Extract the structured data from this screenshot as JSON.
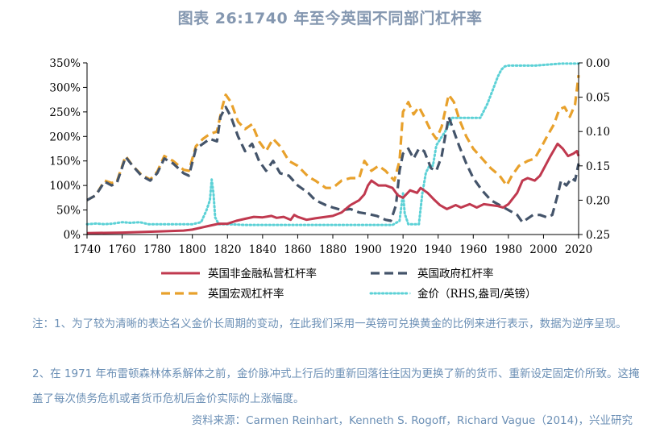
{
  "title": "图表 26:1740 年至今英国不同部门杠杆率",
  "notes": {
    "note1": "注：1、为了较为清晰的表达名义金价长周期的变动，在此我们采用一英镑可兑换黄金的比例来进行表示，数据为逆序呈现。",
    "note2": "2、在 1971 年布雷顿森林体系解体之前，金价脉冲式上行后的重新回落往往因为更换了新的货币、重新设定固定价所致。这掩盖了每次债务危机或者货币危机后金价实际的上涨幅度。",
    "source": "资料来源：Carmen Reinhart，Kenneth S. Rogoff，Richard Vague（2014)，兴业研究"
  },
  "chart_data": {
    "type": "line",
    "title": "图表 26:1740 年至今英国不同部门杠杆率",
    "xlim": [
      1740,
      2020
    ],
    "x_ticks": [
      "1740",
      "1760",
      "1780",
      "1800",
      "1820",
      "1840",
      "1860",
      "1880",
      "1900",
      "1920",
      "1940",
      "1960",
      "1980",
      "2000",
      "2020"
    ],
    "y_left": {
      "lim": [
        0,
        350
      ],
      "ticks": [
        "0%",
        "50%",
        "100%",
        "150%",
        "200%",
        "250%",
        "300%",
        "350%"
      ]
    },
    "y_right": {
      "lim": [
        0.0,
        0.25
      ],
      "reversed": true,
      "ticks": [
        "0.00",
        "0.05",
        "0.10",
        "0.15",
        "0.20",
        "0.25"
      ]
    },
    "grid": false,
    "legend_position": "bottom",
    "series": [
      {
        "name": "英国非金融私营杠杆率",
        "axis": "left",
        "color": "#c0394f",
        "style": "solid",
        "points": [
          [
            1740,
            3
          ],
          [
            1760,
            4
          ],
          [
            1780,
            6
          ],
          [
            1795,
            8
          ],
          [
            1800,
            10
          ],
          [
            1810,
            18
          ],
          [
            1815,
            22
          ],
          [
            1820,
            22
          ],
          [
            1825,
            28
          ],
          [
            1830,
            32
          ],
          [
            1835,
            36
          ],
          [
            1840,
            35
          ],
          [
            1845,
            38
          ],
          [
            1848,
            34
          ],
          [
            1852,
            36
          ],
          [
            1856,
            30
          ],
          [
            1858,
            40
          ],
          [
            1860,
            36
          ],
          [
            1865,
            30
          ],
          [
            1870,
            33
          ],
          [
            1880,
            38
          ],
          [
            1885,
            45
          ],
          [
            1890,
            60
          ],
          [
            1895,
            70
          ],
          [
            1898,
            82
          ],
          [
            1900,
            100
          ],
          [
            1902,
            110
          ],
          [
            1906,
            100
          ],
          [
            1910,
            100
          ],
          [
            1914,
            95
          ],
          [
            1917,
            80
          ],
          [
            1920,
            75
          ],
          [
            1924,
            90
          ],
          [
            1928,
            85
          ],
          [
            1930,
            95
          ],
          [
            1934,
            85
          ],
          [
            1938,
            70
          ],
          [
            1941,
            60
          ],
          [
            1945,
            52
          ],
          [
            1950,
            60
          ],
          [
            1953,
            55
          ],
          [
            1958,
            62
          ],
          [
            1962,
            55
          ],
          [
            1966,
            62
          ],
          [
            1970,
            60
          ],
          [
            1974,
            58
          ],
          [
            1977,
            55
          ],
          [
            1980,
            62
          ],
          [
            1985,
            85
          ],
          [
            1988,
            110
          ],
          [
            1991,
            115
          ],
          [
            1995,
            110
          ],
          [
            1998,
            120
          ],
          [
            2001,
            140
          ],
          [
            2004,
            160
          ],
          [
            2008,
            185
          ],
          [
            2011,
            175
          ],
          [
            2014,
            160
          ],
          [
            2017,
            165
          ],
          [
            2019,
            170
          ],
          [
            2020,
            160
          ]
        ]
      },
      {
        "name": "英国政府杠杆率",
        "axis": "left",
        "color": "#44546a",
        "style": "dashed",
        "points": [
          [
            1740,
            70
          ],
          [
            1745,
            80
          ],
          [
            1750,
            108
          ],
          [
            1754,
            100
          ],
          [
            1757,
            105
          ],
          [
            1762,
            158
          ],
          [
            1766,
            140
          ],
          [
            1771,
            120
          ],
          [
            1776,
            110
          ],
          [
            1780,
            125
          ],
          [
            1784,
            155
          ],
          [
            1789,
            145
          ],
          [
            1795,
            125
          ],
          [
            1798,
            120
          ],
          [
            1802,
            175
          ],
          [
            1806,
            185
          ],
          [
            1810,
            195
          ],
          [
            1814,
            190
          ],
          [
            1816,
            240
          ],
          [
            1819,
            260
          ],
          [
            1822,
            240
          ],
          [
            1826,
            200
          ],
          [
            1830,
            170
          ],
          [
            1834,
            185
          ],
          [
            1838,
            150
          ],
          [
            1842,
            130
          ],
          [
            1846,
            150
          ],
          [
            1850,
            125
          ],
          [
            1855,
            120
          ],
          [
            1860,
            100
          ],
          [
            1866,
            85
          ],
          [
            1870,
            70
          ],
          [
            1876,
            60
          ],
          [
            1880,
            55
          ],
          [
            1885,
            50
          ],
          [
            1890,
            52
          ],
          [
            1895,
            45
          ],
          [
            1900,
            42
          ],
          [
            1905,
            38
          ],
          [
            1910,
            30
          ],
          [
            1913,
            28
          ],
          [
            1916,
            60
          ],
          [
            1918,
            130
          ],
          [
            1920,
            165
          ],
          [
            1923,
            175
          ],
          [
            1926,
            155
          ],
          [
            1929,
            175
          ],
          [
            1932,
            170
          ],
          [
            1936,
            135
          ],
          [
            1939,
            130
          ],
          [
            1942,
            160
          ],
          [
            1946,
            240
          ],
          [
            1949,
            210
          ],
          [
            1952,
            180
          ],
          [
            1956,
            145
          ],
          [
            1960,
            115
          ],
          [
            1965,
            90
          ],
          [
            1970,
            70
          ],
          [
            1975,
            60
          ],
          [
            1980,
            50
          ],
          [
            1985,
            40
          ],
          [
            1988,
            25
          ],
          [
            1990,
            30
          ],
          [
            1994,
            40
          ],
          [
            1998,
            40
          ],
          [
            2002,
            35
          ],
          [
            2005,
            40
          ],
          [
            2008,
            80
          ],
          [
            2010,
            110
          ],
          [
            2013,
            100
          ],
          [
            2016,
            115
          ],
          [
            2018,
            110
          ],
          [
            2020,
            145
          ]
        ]
      },
      {
        "name": "英国宏观杠杆率",
        "axis": "left",
        "color": "#e8a12c",
        "style": "dashed",
        "points": [
          [
            1740,
            70
          ],
          [
            1745,
            80
          ],
          [
            1750,
            110
          ],
          [
            1754,
            105
          ],
          [
            1757,
            108
          ],
          [
            1762,
            160
          ],
          [
            1766,
            140
          ],
          [
            1771,
            122
          ],
          [
            1776,
            112
          ],
          [
            1780,
            128
          ],
          [
            1784,
            160
          ],
          [
            1789,
            150
          ],
          [
            1795,
            132
          ],
          [
            1798,
            130
          ],
          [
            1802,
            180
          ],
          [
            1806,
            195
          ],
          [
            1810,
            205
          ],
          [
            1814,
            210
          ],
          [
            1817,
            260
          ],
          [
            1819,
            285
          ],
          [
            1822,
            270
          ],
          [
            1826,
            230
          ],
          [
            1830,
            215
          ],
          [
            1834,
            225
          ],
          [
            1838,
            190
          ],
          [
            1842,
            170
          ],
          [
            1846,
            195
          ],
          [
            1850,
            180
          ],
          [
            1855,
            150
          ],
          [
            1860,
            140
          ],
          [
            1866,
            118
          ],
          [
            1870,
            110
          ],
          [
            1876,
            95
          ],
          [
            1880,
            95
          ],
          [
            1885,
            110
          ],
          [
            1890,
            115
          ],
          [
            1895,
            115
          ],
          [
            1898,
            150
          ],
          [
            1902,
            130
          ],
          [
            1906,
            140
          ],
          [
            1910,
            130
          ],
          [
            1915,
            110
          ],
          [
            1918,
            150
          ],
          [
            1920,
            250
          ],
          [
            1923,
            270
          ],
          [
            1926,
            245
          ],
          [
            1929,
            260
          ],
          [
            1932,
            240
          ],
          [
            1936,
            210
          ],
          [
            1939,
            195
          ],
          [
            1942,
            220
          ],
          [
            1946,
            285
          ],
          [
            1949,
            270
          ],
          [
            1952,
            235
          ],
          [
            1956,
            200
          ],
          [
            1960,
            175
          ],
          [
            1965,
            155
          ],
          [
            1970,
            135
          ],
          [
            1975,
            120
          ],
          [
            1979,
            100
          ],
          [
            1982,
            120
          ],
          [
            1986,
            140
          ],
          [
            1991,
            150
          ],
          [
            1995,
            155
          ],
          [
            1999,
            180
          ],
          [
            2002,
            200
          ],
          [
            2006,
            225
          ],
          [
            2009,
            255
          ],
          [
            2012,
            260
          ],
          [
            2015,
            240
          ],
          [
            2018,
            265
          ],
          [
            2020,
            325
          ]
        ]
      },
      {
        "name": "金价（RHS,盎司/英镑）",
        "axis": "right",
        "color": "#5cd1d6",
        "style": "dotted",
        "points": [
          [
            1740,
            0.235
          ],
          [
            1745,
            0.234
          ],
          [
            1750,
            0.235
          ],
          [
            1755,
            0.234
          ],
          [
            1760,
            0.232
          ],
          [
            1765,
            0.233
          ],
          [
            1770,
            0.232
          ],
          [
            1775,
            0.235
          ],
          [
            1780,
            0.235
          ],
          [
            1790,
            0.235
          ],
          [
            1800,
            0.235
          ],
          [
            1805,
            0.232
          ],
          [
            1808,
            0.215
          ],
          [
            1810,
            0.2
          ],
          [
            1811,
            0.17
          ],
          [
            1812,
            0.19
          ],
          [
            1813,
            0.225
          ],
          [
            1815,
            0.235
          ],
          [
            1820,
            0.235
          ],
          [
            1830,
            0.236
          ],
          [
            1840,
            0.236
          ],
          [
            1850,
            0.236
          ],
          [
            1860,
            0.236
          ],
          [
            1870,
            0.236
          ],
          [
            1880,
            0.236
          ],
          [
            1890,
            0.236
          ],
          [
            1900,
            0.236
          ],
          [
            1910,
            0.236
          ],
          [
            1914,
            0.236
          ],
          [
            1918,
            0.23
          ],
          [
            1920,
            0.19
          ],
          [
            1921,
            0.22
          ],
          [
            1923,
            0.235
          ],
          [
            1926,
            0.235
          ],
          [
            1929,
            0.235
          ],
          [
            1931,
            0.19
          ],
          [
            1933,
            0.16
          ],
          [
            1935,
            0.15
          ],
          [
            1937,
            0.15
          ],
          [
            1939,
            0.12
          ],
          [
            1944,
            0.1
          ],
          [
            1948,
            0.08
          ],
          [
            1950,
            0.08
          ],
          [
            1955,
            0.08
          ],
          [
            1960,
            0.08
          ],
          [
            1964,
            0.08
          ],
          [
            1966,
            0.07
          ],
          [
            1968,
            0.06
          ],
          [
            1971,
            0.04
          ],
          [
            1974,
            0.02
          ],
          [
            1976,
            0.01
          ],
          [
            1978,
            0.005
          ],
          [
            1980,
            0.004
          ],
          [
            1985,
            0.004
          ],
          [
            1990,
            0.004
          ],
          [
            1995,
            0.004
          ],
          [
            2000,
            0.003
          ],
          [
            2005,
            0.002
          ],
          [
            2010,
            0.001
          ],
          [
            2015,
            0.001
          ],
          [
            2020,
            0.001
          ]
        ]
      }
    ]
  }
}
